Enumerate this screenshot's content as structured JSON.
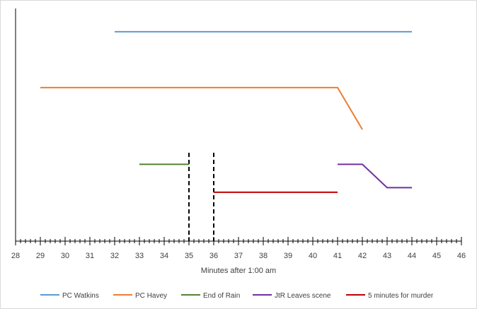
{
  "chart_data": {
    "type": "line",
    "xlabel": "Minutes after 1:00 am",
    "ylabel": "",
    "title": "",
    "xlim": [
      28,
      46
    ],
    "ylim": [
      0,
      10
    ],
    "x_ticks": [
      28,
      29,
      30,
      31,
      32,
      33,
      34,
      35,
      36,
      37,
      38,
      39,
      40,
      41,
      42,
      43,
      44,
      45,
      46
    ],
    "minor_ticks_per_unit": 5,
    "y_axis_labels": false,
    "grid": false,
    "legend_position": "bottom",
    "series": [
      {
        "name": "PC Watkins",
        "color": "#5b9bd5",
        "points": [
          [
            32,
            9
          ],
          [
            44,
            9
          ]
        ]
      },
      {
        "name": "PC Havey",
        "color": "#ed7d31",
        "points": [
          [
            29,
            6.6
          ],
          [
            41,
            6.6
          ],
          [
            42,
            4.8
          ]
        ]
      },
      {
        "name": "End of Rain",
        "color": "#548235",
        "points": [
          [
            33,
            3.3
          ],
          [
            35,
            3.3
          ]
        ]
      },
      {
        "name": "JtR Leaves scene",
        "color": "#7030a0",
        "points": [
          [
            41,
            3.3
          ],
          [
            42,
            3.3
          ],
          [
            43,
            2.3
          ],
          [
            44,
            2.3
          ]
        ]
      },
      {
        "name": "5 minutes for murder",
        "color": "#c00000",
        "points": [
          [
            36,
            2.1
          ],
          [
            41,
            2.1
          ]
        ]
      }
    ],
    "markers": [
      {
        "x": 35,
        "y_from": 0,
        "y_to": 3.8,
        "color": "#000000",
        "style": "dashed"
      },
      {
        "x": 36,
        "y_from": 0,
        "y_to": 3.8,
        "color": "#000000",
        "style": "dashed"
      }
    ]
  }
}
